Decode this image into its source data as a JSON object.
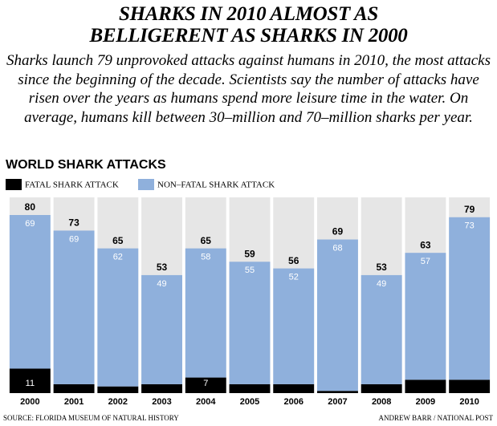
{
  "chart_data": {
    "type": "stacked-bar",
    "title": "SHARKS IN 2010 ALMOST AS BELLIGERENT AS SHARKS IN 2000",
    "subtitle": "Sharks launch 79 unprovoked attacks against humans in 2010, the most attacks since the beginning of the decade. Scientists say the number of attacks have risen over the years as humans spend more leisure time in the water. On average, humans kill between 30–million and 70–million sharks per year.",
    "chart_title": "WORLD SHARK ATTACKS",
    "categories": [
      "2000",
      "2001",
      "2002",
      "2003",
      "2004",
      "2005",
      "2006",
      "2007",
      "2008",
      "2009",
      "2010"
    ],
    "series": [
      {
        "name": "FATAL SHARK ATTACK",
        "color": "#000000",
        "values": [
          11,
          4,
          3,
          4,
          7,
          4,
          4,
          1,
          4,
          6,
          6
        ]
      },
      {
        "name": "NON–FATAL SHARK ATTACK",
        "color": "#8fb0dc",
        "values": [
          69,
          69,
          62,
          49,
          58,
          55,
          52,
          68,
          49,
          57,
          73
        ]
      }
    ],
    "totals": [
      80,
      73,
      65,
      53,
      65,
      59,
      56,
      69,
      53,
      63,
      79
    ],
    "source": "SOURCE: FLORIDA MUSEUM OF NATURAL HISTORY",
    "credit": "ANDREW BARR / NATIONAL POST"
  }
}
